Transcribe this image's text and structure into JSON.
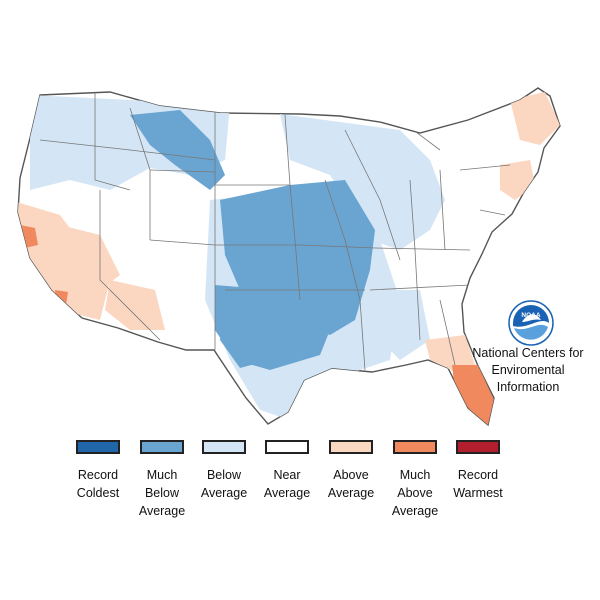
{
  "map": {
    "region": "contiguous-united-states",
    "legend": [
      {
        "key": "record-coldest",
        "label": "Record\nColdest",
        "color": "#2266aa"
      },
      {
        "key": "much-below-average",
        "label": "Much\nBelow\nAverage",
        "color": "#6aa5d2"
      },
      {
        "key": "below-average",
        "label": "Below\nAverage",
        "color": "#d4e6f5"
      },
      {
        "key": "near-average",
        "label": "Near\nAverage",
        "color": "#ffffff"
      },
      {
        "key": "above-average",
        "label": "Above\nAverage",
        "color": "#fbd6c0"
      },
      {
        "key": "much-above-average",
        "label": "Much\nAbove\nAverage",
        "color": "#f08a5e"
      },
      {
        "key": "record-warmest",
        "label": "Record\nWarmest",
        "color": "#b31e2e"
      }
    ],
    "zones": [
      {
        "category": "below-average",
        "area": "pacific-northwest-and-northern-rockies"
      },
      {
        "category": "below-average",
        "area": "upper-midwest-and-great-lakes"
      },
      {
        "category": "below-average",
        "area": "southern-plains-and-gulf-coast"
      },
      {
        "category": "much-below-average",
        "area": "montana-wyoming"
      },
      {
        "category": "much-below-average",
        "area": "central-plains-and-mississippi-valley"
      },
      {
        "category": "above-average",
        "area": "california-and-nevada"
      },
      {
        "category": "above-average",
        "area": "southern-arizona"
      },
      {
        "category": "above-average",
        "area": "new-england"
      },
      {
        "category": "above-average",
        "area": "southeast-coast"
      },
      {
        "category": "much-above-average",
        "area": "florida-peninsula"
      },
      {
        "category": "much-above-average",
        "area": "coastal-california-spots"
      }
    ]
  },
  "credit": {
    "line1": "National Centers for",
    "line2": "Enviromental",
    "line3": "Information"
  },
  "logo": {
    "text": "NOAA",
    "icon": "noaa-logo-icon",
    "color": "#1a63b4"
  }
}
